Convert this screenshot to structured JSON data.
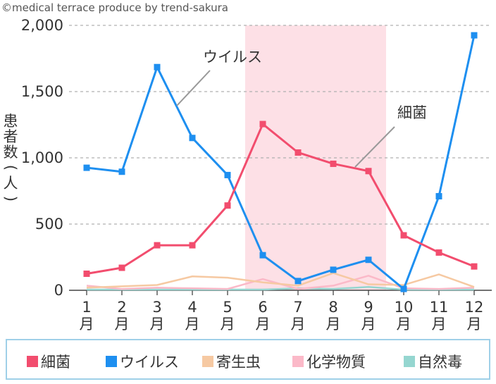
{
  "credit": "©medical terrace produce by trend-sakura",
  "chart_data": {
    "type": "line",
    "ylabel_chars": [
      "患",
      "者",
      "数",
      "(",
      "人",
      ")"
    ],
    "ylim": [
      0,
      2000
    ],
    "yticks": [
      0,
      500,
      1000,
      1500,
      2000
    ],
    "ytick_labels": [
      "0",
      "500",
      "1,000",
      "1,500",
      "2,000"
    ],
    "x_numbers": [
      "1",
      "2",
      "3",
      "4",
      "5",
      "6",
      "7",
      "8",
      "9",
      "10",
      "11",
      "12"
    ],
    "x_suffix": "月",
    "grid": "horizontal dashed",
    "highlight_months": [
      6,
      9
    ],
    "highlight_color": "#fde0e6",
    "annotations": [
      {
        "text": "ウイルス",
        "series": "ウイルス"
      },
      {
        "text": "細菌",
        "series": "細菌"
      }
    ],
    "series": [
      {
        "name": "細菌",
        "color": "#f24d6e",
        "marker": true,
        "values": [
          125,
          170,
          340,
          340,
          640,
          1255,
          1040,
          955,
          900,
          415,
          285,
          180
        ]
      },
      {
        "name": "ウイルス",
        "color": "#1e8ff0",
        "marker": true,
        "values": [
          925,
          895,
          1685,
          1150,
          870,
          265,
          70,
          155,
          230,
          10,
          710,
          1925
        ]
      },
      {
        "name": "寄生虫",
        "color": "#f6c9a2",
        "marker": false,
        "values": [
          20,
          30,
          40,
          105,
          95,
          60,
          35,
          130,
          45,
          40,
          120,
          25
        ]
      },
      {
        "name": "化学物質",
        "color": "#fbb9c8",
        "marker": false,
        "values": [
          35,
          10,
          20,
          15,
          10,
          85,
          10,
          35,
          110,
          15,
          10,
          20
        ]
      },
      {
        "name": "自然毒",
        "color": "#95d6d0",
        "marker": false,
        "values": [
          5,
          5,
          5,
          5,
          5,
          5,
          15,
          10,
          25,
          5,
          5,
          5
        ]
      }
    ]
  }
}
